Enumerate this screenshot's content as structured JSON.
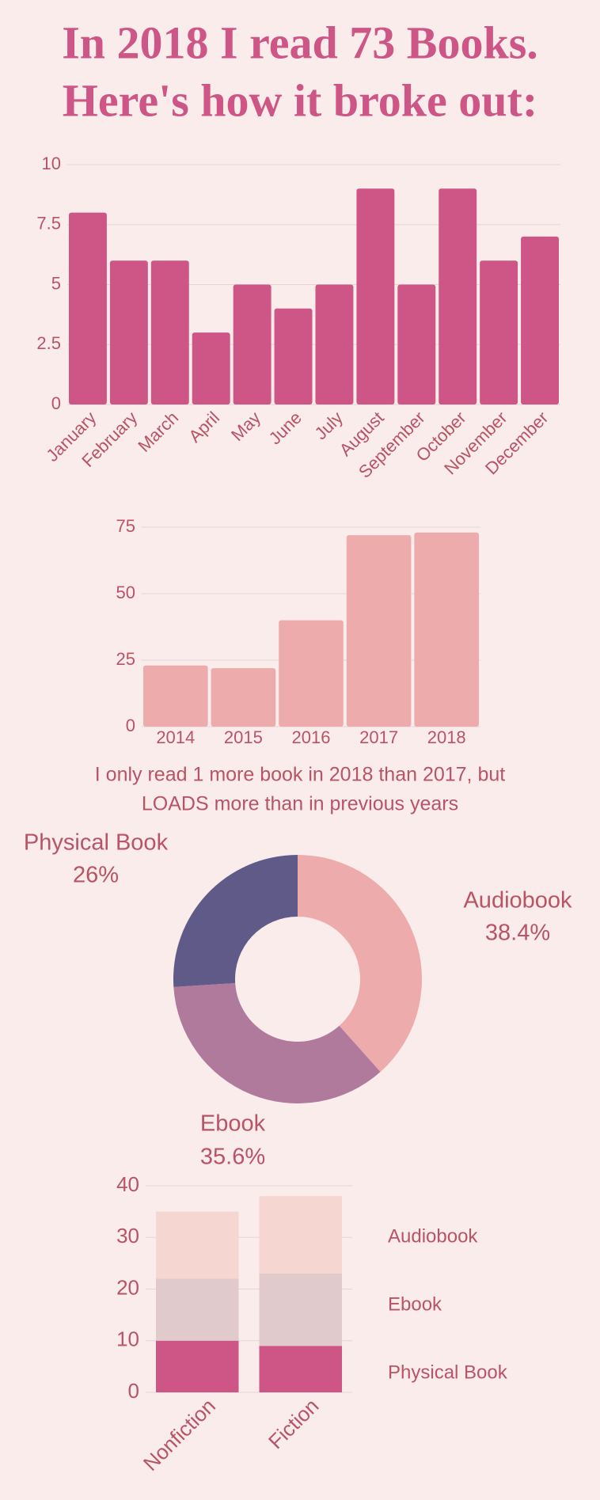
{
  "title": [
    "In 2018 I read 73 Books.",
    "Here's how it broke out:"
  ],
  "chart_data": [
    {
      "type": "bar",
      "categories": [
        "January",
        "February",
        "March",
        "April",
        "May",
        "June",
        "July",
        "August",
        "September",
        "October",
        "November",
        "December"
      ],
      "values": [
        8,
        6,
        6,
        3,
        5,
        4,
        5,
        9,
        5,
        9,
        6,
        7
      ],
      "color": "#cd5686",
      "ylim": [
        0,
        10
      ],
      "yticks": [
        0,
        2.5,
        5,
        7.5,
        10
      ],
      "grid": true
    },
    {
      "type": "bar",
      "categories": [
        "2014",
        "2015",
        "2016",
        "2017",
        "2018"
      ],
      "values": [
        23,
        22,
        40,
        72,
        73
      ],
      "color": "#eeabab",
      "ylim": [
        0,
        75
      ],
      "yticks": [
        0,
        25,
        50,
        75
      ],
      "grid": true,
      "caption": [
        "I only read 1 more book in 2018 than 2017, but",
        "LOADS more than in previous years"
      ]
    },
    {
      "type": "pie",
      "categories": [
        "Audiobook",
        "Ebook",
        "Physical Book"
      ],
      "values": [
        38.4,
        35.6,
        26
      ],
      "value_labels": [
        "38.4%",
        "35.6%",
        "26%"
      ],
      "colors": [
        "#eeabab",
        "#b07a9c",
        "#5f5a88"
      ],
      "donut": true
    },
    {
      "type": "stacked_bar",
      "categories": [
        "Nonfiction",
        "Fiction"
      ],
      "series": [
        {
          "name": "Physical Book",
          "color": "#cd5686",
          "values": [
            10,
            9
          ]
        },
        {
          "name": "Ebook",
          "color": "#e0cacb",
          "values": [
            12,
            14
          ]
        },
        {
          "name": "Audiobook",
          "color": "#f6d6d0",
          "values": [
            13,
            15
          ]
        }
      ],
      "ylim": [
        0,
        40
      ],
      "yticks": [
        0,
        10,
        20,
        30,
        40
      ],
      "grid": true,
      "legend": "right"
    }
  ]
}
